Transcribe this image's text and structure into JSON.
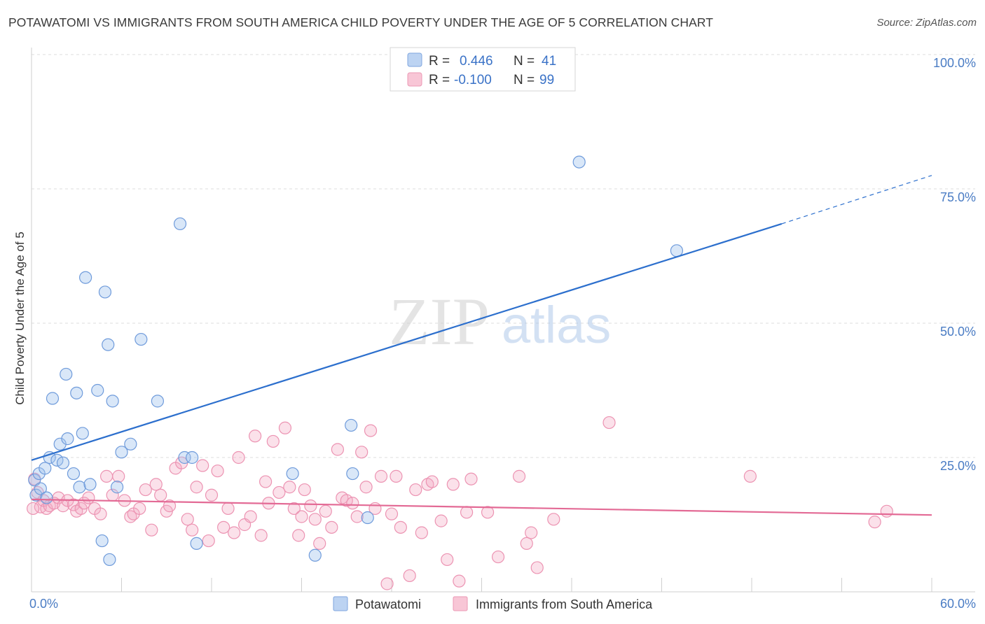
{
  "header": {
    "title": "POTAWATOMI VS IMMIGRANTS FROM SOUTH AMERICA CHILD POVERTY UNDER THE AGE OF 5 CORRELATION CHART",
    "source": "Source: ZipAtlas.com"
  },
  "watermark": {
    "zip": "ZIP",
    "atlas": "atlas"
  },
  "legend": {
    "r_label": "R =",
    "n_label": "N =",
    "rows": [
      {
        "r": "0.446",
        "n": "41"
      },
      {
        "r": "-0.100",
        "n": "99"
      }
    ]
  },
  "chart_data": {
    "type": "scatter",
    "title": "POTAWATOMI VS IMMIGRANTS FROM SOUTH AMERICA CHILD POVERTY UNDER THE AGE OF 5 CORRELATION CHART",
    "ylabel": "Child Poverty Under the Age of 5",
    "xlabel": "",
    "xlim": [
      0,
      60
    ],
    "ylim": [
      0,
      100
    ],
    "x_tick_labels": [
      "0.0%",
      "60.0%"
    ],
    "y_tick_labels": [
      "100.0%",
      "75.0%",
      "50.0%",
      "25.0%"
    ],
    "y_ticks": [
      100,
      75,
      50,
      25
    ],
    "grid": true,
    "legend_position": "top-center",
    "colors": {
      "potawatomi": "#5b8fd9",
      "immigrants": "#e77fa0",
      "blue_line": "#2c6fcd",
      "pink_line": "#e36a95"
    },
    "series": [
      {
        "name": "Potawatomi",
        "color": "#5b8fd9",
        "trend": {
          "x0": 0,
          "y0": 24.5,
          "x1": 50,
          "y1": 68.5,
          "dash_to_x": 60,
          "dash_to_y": 77.5
        },
        "points": [
          [
            0.2,
            20.8
          ],
          [
            0.3,
            18.0
          ],
          [
            0.5,
            22.0
          ],
          [
            0.6,
            19.2
          ],
          [
            0.9,
            23.0
          ],
          [
            1.0,
            17.5
          ],
          [
            1.2,
            25.0
          ],
          [
            1.4,
            36.0
          ],
          [
            1.7,
            24.5
          ],
          [
            1.9,
            27.5
          ],
          [
            2.1,
            24.0
          ],
          [
            2.4,
            28.5
          ],
          [
            2.3,
            40.5
          ],
          [
            2.8,
            22.0
          ],
          [
            3.0,
            37.0
          ],
          [
            3.2,
            19.5
          ],
          [
            3.4,
            29.5
          ],
          [
            3.6,
            58.5
          ],
          [
            3.9,
            20.0
          ],
          [
            4.4,
            37.5
          ],
          [
            4.7,
            9.5
          ],
          [
            4.9,
            55.8
          ],
          [
            5.1,
            46.0
          ],
          [
            5.2,
            6.0
          ],
          [
            5.4,
            35.5
          ],
          [
            5.7,
            19.5
          ],
          [
            6.0,
            26.0
          ],
          [
            6.6,
            27.5
          ],
          [
            7.3,
            47.0
          ],
          [
            8.4,
            35.5
          ],
          [
            9.9,
            68.5
          ],
          [
            10.2,
            25.0
          ],
          [
            10.7,
            25.0
          ],
          [
            11.0,
            9.0
          ],
          [
            17.4,
            22.0
          ],
          [
            18.9,
            6.8
          ],
          [
            21.3,
            31.0
          ],
          [
            21.4,
            22.0
          ],
          [
            22.4,
            13.8
          ],
          [
            36.5,
            80.0
          ],
          [
            43.0,
            63.5
          ]
        ]
      },
      {
        "name": "Immigrants from South America",
        "color": "#e77fa0",
        "trend": {
          "x0": 0,
          "y0": 17.2,
          "x1": 60,
          "y1": 14.3
        },
        "points": [
          [
            0.2,
            21.0
          ],
          [
            0.4,
            18.5
          ],
          [
            0.6,
            15.8
          ],
          [
            0.8,
            17.0
          ],
          [
            1.0,
            15.5
          ],
          [
            1.2,
            16.0
          ],
          [
            1.5,
            16.5
          ],
          [
            1.8,
            17.5
          ],
          [
            2.1,
            16.0
          ],
          [
            2.4,
            17.0
          ],
          [
            2.8,
            16.2
          ],
          [
            3.0,
            15.0
          ],
          [
            3.3,
            15.5
          ],
          [
            3.5,
            16.5
          ],
          [
            3.8,
            17.5
          ],
          [
            4.2,
            15.5
          ],
          [
            4.6,
            14.5
          ],
          [
            5.0,
            21.5
          ],
          [
            5.4,
            18.0
          ],
          [
            5.8,
            21.5
          ],
          [
            6.2,
            17.0
          ],
          [
            6.6,
            14.0
          ],
          [
            6.8,
            14.5
          ],
          [
            7.2,
            15.5
          ],
          [
            7.6,
            19.0
          ],
          [
            8.0,
            11.5
          ],
          [
            8.3,
            20.0
          ],
          [
            8.6,
            18.0
          ],
          [
            9.0,
            15.0
          ],
          [
            9.2,
            16.0
          ],
          [
            9.6,
            23.0
          ],
          [
            10.0,
            24.0
          ],
          [
            10.4,
            13.5
          ],
          [
            10.7,
            11.5
          ],
          [
            11.0,
            19.5
          ],
          [
            11.4,
            23.5
          ],
          [
            11.8,
            9.5
          ],
          [
            12.0,
            18.0
          ],
          [
            12.4,
            22.5
          ],
          [
            12.8,
            12.0
          ],
          [
            13.1,
            15.5
          ],
          [
            13.5,
            11.0
          ],
          [
            13.8,
            25.0
          ],
          [
            14.2,
            12.5
          ],
          [
            14.6,
            14.0
          ],
          [
            14.9,
            29.0
          ],
          [
            15.3,
            10.5
          ],
          [
            15.6,
            20.5
          ],
          [
            15.8,
            16.5
          ],
          [
            16.1,
            28.0
          ],
          [
            16.5,
            18.5
          ],
          [
            16.9,
            30.5
          ],
          [
            17.2,
            19.5
          ],
          [
            17.5,
            15.5
          ],
          [
            17.8,
            10.5
          ],
          [
            18.0,
            14.0
          ],
          [
            18.2,
            19.0
          ],
          [
            18.6,
            16.0
          ],
          [
            18.9,
            13.5
          ],
          [
            19.2,
            9.0
          ],
          [
            19.6,
            15.0
          ],
          [
            20.0,
            12.0
          ],
          [
            20.4,
            26.5
          ],
          [
            20.7,
            17.5
          ],
          [
            21.0,
            17.0
          ],
          [
            21.4,
            16.5
          ],
          [
            21.7,
            14.0
          ],
          [
            22.0,
            26.0
          ],
          [
            22.3,
            19.5
          ],
          [
            22.6,
            30.0
          ],
          [
            22.9,
            15.5
          ],
          [
            23.3,
            21.5
          ],
          [
            23.7,
            1.5
          ],
          [
            24.0,
            14.5
          ],
          [
            24.3,
            21.5
          ],
          [
            24.6,
            12.0
          ],
          [
            25.2,
            3.0
          ],
          [
            25.6,
            19.0
          ],
          [
            26.0,
            11.0
          ],
          [
            26.4,
            20.0
          ],
          [
            26.7,
            20.5
          ],
          [
            27.3,
            13.2
          ],
          [
            27.7,
            6.0
          ],
          [
            28.1,
            20.0
          ],
          [
            28.5,
            2.0
          ],
          [
            29.0,
            14.8
          ],
          [
            29.3,
            21.0
          ],
          [
            30.4,
            14.8
          ],
          [
            31.1,
            6.5
          ],
          [
            32.5,
            21.5
          ],
          [
            33.0,
            9.0
          ],
          [
            33.3,
            11.0
          ],
          [
            33.7,
            4.5
          ],
          [
            34.8,
            13.5
          ],
          [
            38.5,
            31.5
          ],
          [
            47.9,
            21.5
          ],
          [
            56.2,
            13.0
          ],
          [
            57.0,
            15.0
          ],
          [
            0.1,
            15.5
          ]
        ]
      }
    ]
  },
  "bottom_legend": {
    "items": [
      {
        "label": "Potawatomi"
      },
      {
        "label": "Immigrants from South America"
      }
    ]
  }
}
